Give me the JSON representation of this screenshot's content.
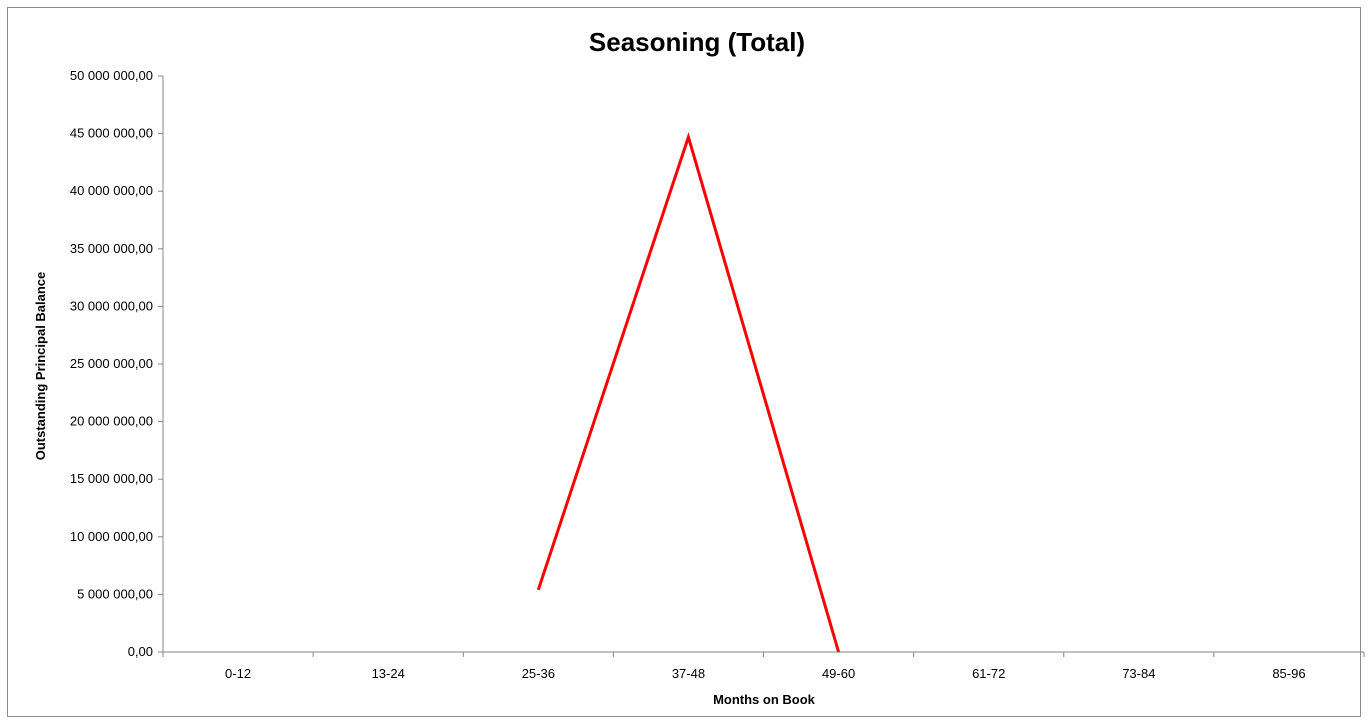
{
  "chart_data": {
    "type": "line",
    "title": "Seasoning (Total)",
    "xlabel": "Months on Book",
    "ylabel": "Outstanding Principal Balance",
    "categories": [
      "0-12",
      "13-24",
      "25-36",
      "37-48",
      "49-60",
      "61-72",
      "73-84",
      "85-96"
    ],
    "series": [
      {
        "values": [
          null,
          null,
          5400000,
          44700000,
          0,
          null,
          null,
          null
        ]
      }
    ],
    "ylim": [
      0,
      50000000
    ],
    "yticks": [
      "0,00",
      "5 000 000,00",
      "10 000 000,00",
      "15 000 000,00",
      "20 000 000,00",
      "25 000 000,00",
      "30 000 000,00",
      "35 000 000,00",
      "40 000 000,00",
      "45 000 000,00",
      "50 000 000,00"
    ],
    "grid": false,
    "colors": {
      "series": "#ff0000",
      "axis": "#868686",
      "frame": "#8c8c8c"
    }
  }
}
